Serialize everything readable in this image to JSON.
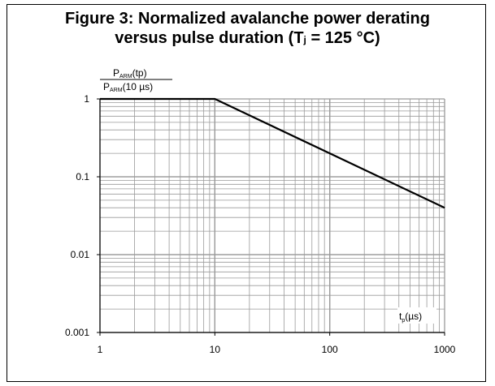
{
  "chart_data": {
    "type": "line",
    "title_line1": "Figure 3: Normalized avalanche power derating",
    "title_line2_a": "versus pulse duration (T",
    "title_line2_sub": "j",
    "title_line2_b": " = 125 °C)",
    "ylabel": {
      "num_p": "P",
      "num_sub": "ARM",
      "num_arg": "(tp)",
      "den_p": "P",
      "den_sub": "ARM",
      "den_arg": "(10 µs)"
    },
    "xlabel": {
      "main": "t",
      "sub": "p",
      "unit": "(µs)"
    },
    "x_scale": "log",
    "y_scale": "log",
    "xlim": [
      1,
      1000
    ],
    "ylim": [
      0.001,
      1
    ],
    "x_ticks": [
      "1",
      "10",
      "100",
      "1000"
    ],
    "y_ticks": [
      "1",
      "0.1",
      "0.01",
      "0.001"
    ],
    "grid": true,
    "series": [
      {
        "x": [
          1,
          10,
          1000
        ],
        "y": [
          1,
          1,
          0.04
        ]
      }
    ]
  },
  "colors": {
    "grid": "#9a9a9a",
    "line": "#000000",
    "axis": "#000000"
  }
}
